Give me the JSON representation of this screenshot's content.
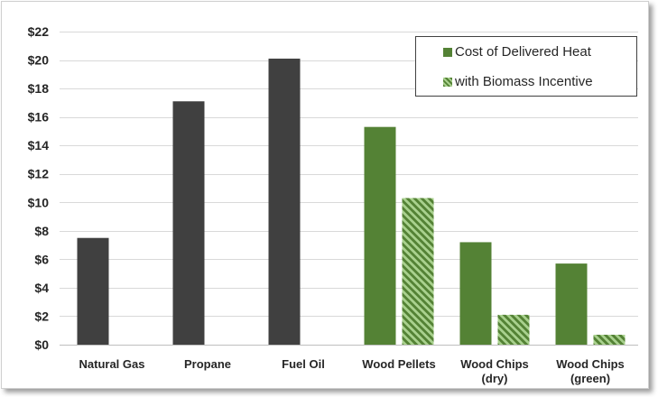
{
  "chart_data": {
    "type": "bar",
    "categories": [
      "Natural Gas",
      "Propane",
      "Fuel Oil",
      "Wood Pellets",
      "Wood Chips (dry)",
      "Wood Chips (green)"
    ],
    "series": [
      {
        "name": "Cost of Delivered Heat",
        "values": [
          7.5,
          17.1,
          20.1,
          15.3,
          7.2,
          5.7
        ],
        "color": "#548235",
        "point_colors": [
          "#404040",
          "#404040",
          "#404040",
          "#548235",
          "#548235",
          "#548235"
        ]
      },
      {
        "name": "with Biomass Incentive",
        "values": [
          null,
          null,
          null,
          10.3,
          2.1,
          0.7
        ],
        "color": "#548235",
        "hatch_color": "#a9d18e"
      }
    ],
    "ylim": [
      0,
      22
    ],
    "yticks": [
      0,
      2,
      4,
      6,
      8,
      10,
      12,
      14,
      16,
      18,
      20,
      22
    ],
    "ytick_labels": [
      "$0",
      "$2",
      "$4",
      "$6",
      "$8",
      "$10",
      "$12",
      "$14",
      "$16",
      "$18",
      "$20",
      "$22"
    ],
    "grid": true,
    "legend": "top-right"
  }
}
